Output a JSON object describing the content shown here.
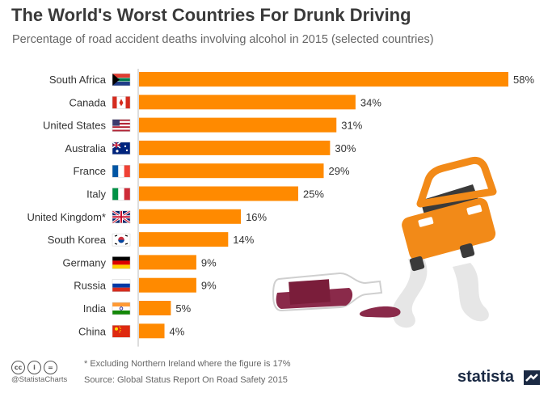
{
  "chart_data": {
    "type": "bar",
    "orientation": "horizontal",
    "title": "The World's Worst Countries For Drunk Driving",
    "subtitle": "Percentage of road accident deaths involving alcohol in 2015 (selected countries)",
    "categories": [
      "South Africa",
      "Canada",
      "United States",
      "Australia",
      "France",
      "Italy",
      "United Kingdom*",
      "South Korea",
      "Germany",
      "Russia",
      "India",
      "China"
    ],
    "values": [
      58,
      34,
      31,
      30,
      29,
      25,
      16,
      14,
      9,
      9,
      5,
      4
    ],
    "value_labels": [
      "58%",
      "34%",
      "31%",
      "30%",
      "29%",
      "25%",
      "16%",
      "14%",
      "9%",
      "9%",
      "5%",
      "4%"
    ],
    "value_unit": "%",
    "xlim": [
      0,
      58
    ],
    "grid": false,
    "bar_color": "#ff8a00",
    "flags": [
      "south-africa",
      "canada",
      "united-states",
      "australia",
      "france",
      "italy",
      "united-kingdom",
      "south-korea",
      "germany",
      "russia",
      "india",
      "china"
    ]
  },
  "footnote": "* Excluding Northern Ireland where the figure is 17%",
  "source": "Source: Global Status Report On Road Safety 2015",
  "handle": "@StatistaCharts",
  "brand": "statista",
  "icons": [
    "cc-icon",
    "attribution-icon",
    "no-derivatives-icon",
    "statista-logo-icon",
    "car-icon",
    "wine-bottle-icon"
  ]
}
